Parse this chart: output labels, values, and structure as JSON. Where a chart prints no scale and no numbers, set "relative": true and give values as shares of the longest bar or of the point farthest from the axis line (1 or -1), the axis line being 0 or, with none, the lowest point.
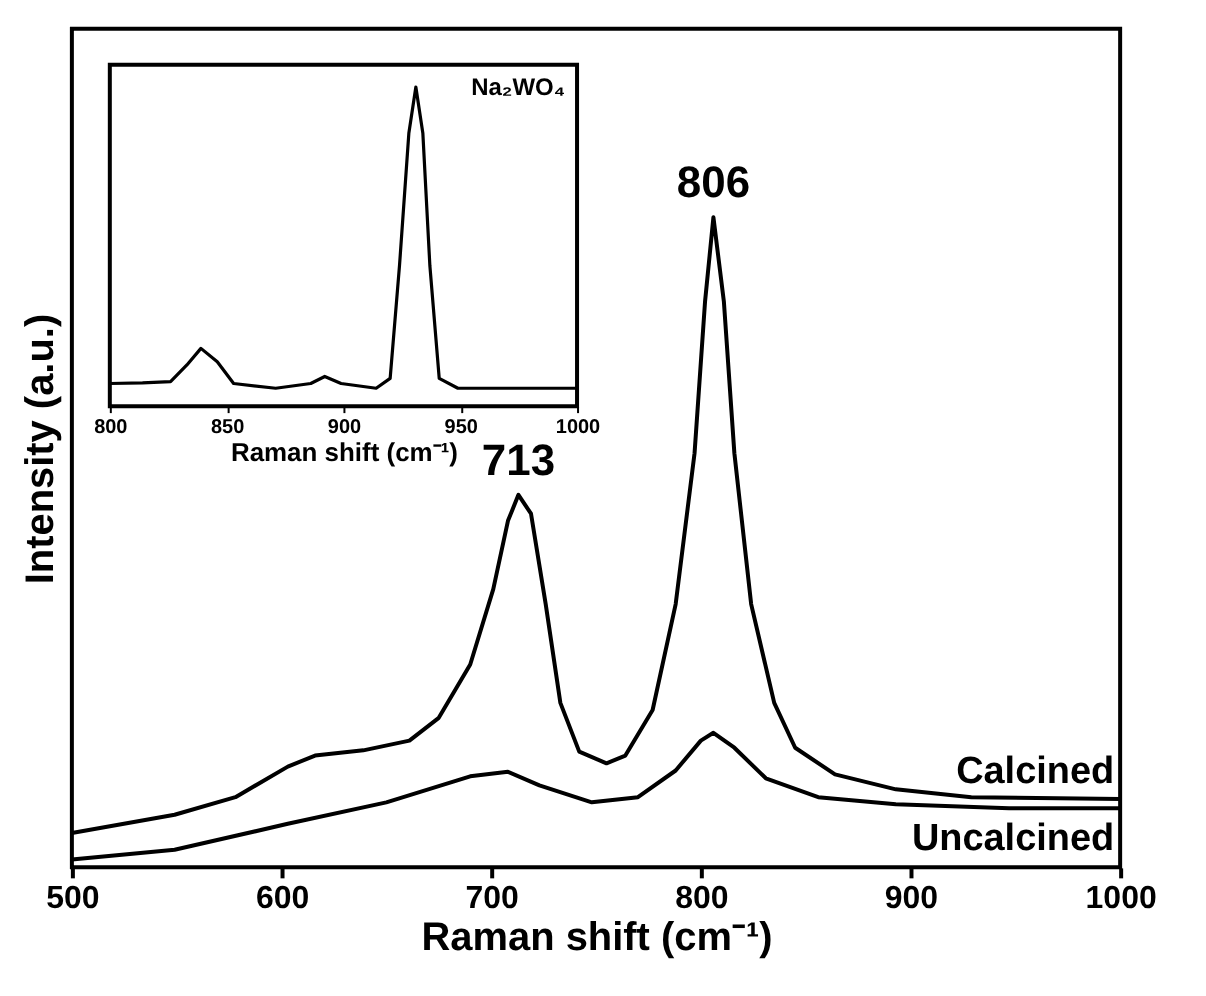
{
  "chart_data": [
    {
      "type": "line",
      "relative": true,
      "xlabel": "Raman shift (cm⁻¹)",
      "ylabel": "Intensity (a.u.)",
      "xlim": [
        500,
        1000
      ],
      "xticks": [
        500,
        600,
        700,
        800,
        900,
        1000
      ],
      "annotations": [
        {
          "text": "713",
          "x": 713,
          "y": 0.573
        },
        {
          "text": "806",
          "x": 806,
          "y": 1.0
        }
      ],
      "series": [
        {
          "name": "Calcined",
          "color": "#000000",
          "x": [
            500,
            549,
            578,
            603,
            616,
            639,
            661,
            675,
            690,
            701,
            708,
            713,
            719,
            726,
            733,
            742,
            755,
            764,
            777,
            788,
            797,
            802,
            806,
            811,
            816,
            824,
            835,
            845,
            864,
            893,
            929,
            1000
          ],
          "values": [
            0.053,
            0.081,
            0.108,
            0.155,
            0.172,
            0.18,
            0.195,
            0.23,
            0.312,
            0.428,
            0.533,
            0.573,
            0.544,
            0.405,
            0.253,
            0.178,
            0.16,
            0.172,
            0.242,
            0.405,
            0.637,
            0.87,
            1.0,
            0.87,
            0.637,
            0.405,
            0.253,
            0.184,
            0.143,
            0.12,
            0.108,
            0.105
          ]
        },
        {
          "name": "Uncalcined",
          "color": "#000000",
          "x": [
            500,
            549,
            603,
            650,
            690,
            708,
            723,
            748,
            770,
            788,
            800,
            806,
            816,
            831,
            856,
            893,
            947,
            1000
          ],
          "values": [
            0.012,
            0.027,
            0.067,
            0.1,
            0.14,
            0.147,
            0.126,
            0.1,
            0.108,
            0.149,
            0.195,
            0.207,
            0.184,
            0.137,
            0.108,
            0.097,
            0.091,
            0.091
          ]
        }
      ]
    },
    {
      "type": "line",
      "relative": true,
      "xlabel": "Raman shift (cm⁻¹)",
      "xlim": [
        800,
        1000
      ],
      "xticks": [
        800,
        850,
        900,
        950,
        1000
      ],
      "annotations": [
        "Na₂WO₄"
      ],
      "series": [
        {
          "color": "#000000",
          "x": [
            800,
            814,
            826,
            833,
            839,
            846,
            853,
            871,
            886,
            892,
            899,
            914,
            920,
            924,
            928,
            931,
            934,
            937,
            941,
            949,
            1000
          ],
          "values": [
            0.071,
            0.073,
            0.077,
            0.129,
            0.181,
            0.139,
            0.071,
            0.056,
            0.071,
            0.093,
            0.071,
            0.056,
            0.087,
            0.44,
            0.855,
            1.0,
            0.855,
            0.44,
            0.087,
            0.056,
            0.056
          ]
        }
      ]
    }
  ]
}
